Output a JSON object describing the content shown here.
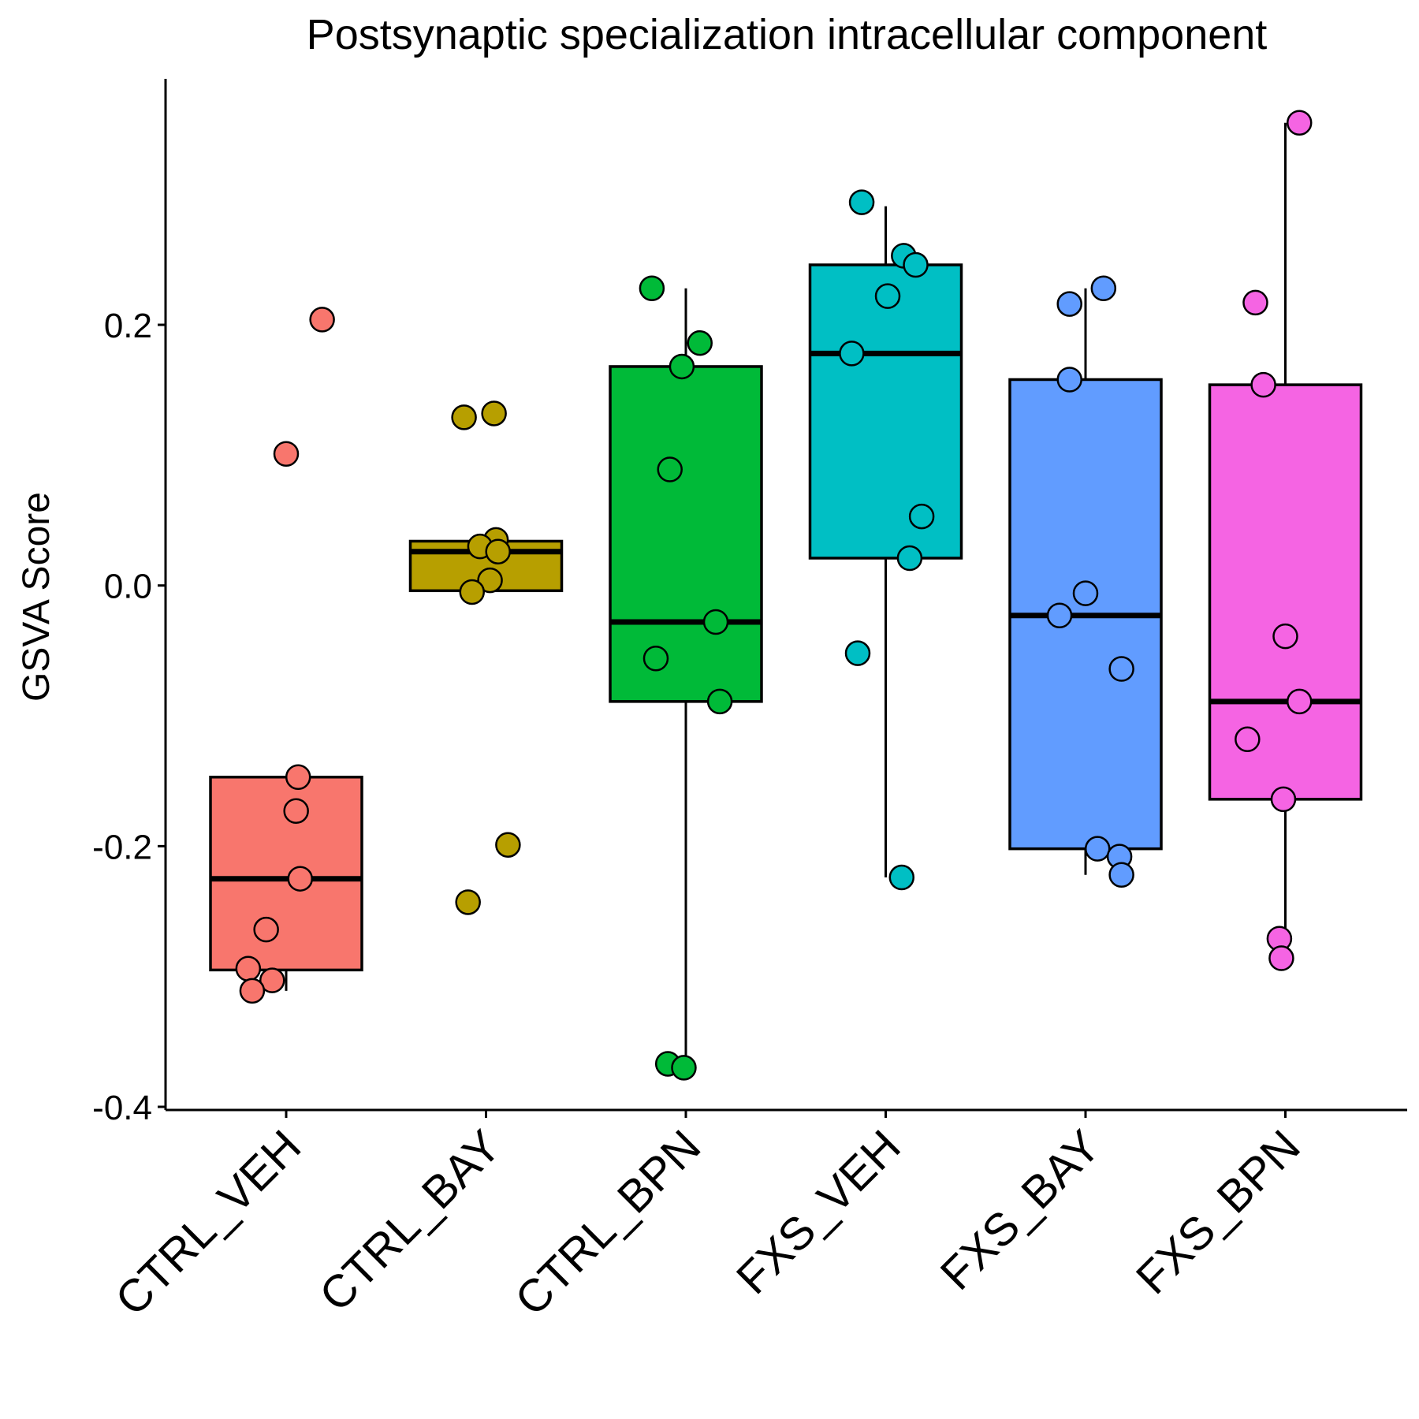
{
  "chart_data": {
    "type": "boxplot",
    "title": "Postsynaptic specialization intracellular component",
    "xlabel": "",
    "ylabel": "GSVA Score",
    "ylim": [
      -0.405,
      0.38
    ],
    "yticks": [
      -0.4,
      -0.2,
      0.0,
      0.2
    ],
    "ytick_labels": [
      "-0.4",
      "-0.2",
      "0.0",
      "0.2"
    ],
    "grid": false,
    "legend": "none",
    "categories": [
      "CTRL_VEH",
      "CTRL_BAY",
      "CTRL_BPN",
      "FXS_VEH",
      "FXS_BAY",
      "FXS_BPN"
    ],
    "series": [
      {
        "category": "CTRL_VEH",
        "color": "#F8766D",
        "box": {
          "whisker_low": -0.311,
          "q1": -0.295,
          "median": -0.225,
          "q3": -0.147,
          "whisker_high": -0.147
        },
        "points": [
          {
            "jitter": 0.18,
            "y": 0.204
          },
          {
            "jitter": 0.0,
            "y": 0.101
          },
          {
            "jitter": 0.06,
            "y": -0.147
          },
          {
            "jitter": 0.05,
            "y": -0.173
          },
          {
            "jitter": 0.07,
            "y": -0.225
          },
          {
            "jitter": -0.1,
            "y": -0.264
          },
          {
            "jitter": -0.19,
            "y": -0.294
          },
          {
            "jitter": -0.07,
            "y": -0.303
          },
          {
            "jitter": -0.17,
            "y": -0.311
          }
        ]
      },
      {
        "category": "CTRL_BAY",
        "color": "#B79F00",
        "box": {
          "whisker_low": -0.004,
          "q1": -0.004,
          "median": 0.026,
          "q3": 0.034,
          "whisker_high": 0.034
        },
        "points": [
          {
            "jitter": 0.04,
            "y": 0.132
          },
          {
            "jitter": -0.11,
            "y": 0.129
          },
          {
            "jitter": 0.05,
            "y": 0.035
          },
          {
            "jitter": -0.03,
            "y": 0.03
          },
          {
            "jitter": 0.06,
            "y": 0.026
          },
          {
            "jitter": 0.02,
            "y": 0.004
          },
          {
            "jitter": -0.07,
            "y": -0.005
          },
          {
            "jitter": 0.11,
            "y": -0.199
          },
          {
            "jitter": -0.09,
            "y": -0.243
          }
        ]
      },
      {
        "category": "CTRL_BPN",
        "color": "#00BA38",
        "box": {
          "whisker_low": -0.37,
          "q1": -0.089,
          "median": -0.028,
          "q3": 0.168,
          "whisker_high": 0.228
        },
        "points": [
          {
            "jitter": -0.17,
            "y": 0.228
          },
          {
            "jitter": 0.07,
            "y": 0.186
          },
          {
            "jitter": -0.02,
            "y": 0.168
          },
          {
            "jitter": -0.08,
            "y": 0.089
          },
          {
            "jitter": 0.15,
            "y": -0.028
          },
          {
            "jitter": -0.15,
            "y": -0.056
          },
          {
            "jitter": 0.17,
            "y": -0.089
          },
          {
            "jitter": -0.09,
            "y": -0.367
          },
          {
            "jitter": -0.01,
            "y": -0.37
          }
        ]
      },
      {
        "category": "FXS_VEH",
        "color": "#00BFC4",
        "box": {
          "whisker_low": -0.224,
          "q1": 0.021,
          "median": 0.178,
          "q3": 0.246,
          "whisker_high": 0.291
        },
        "points": [
          {
            "jitter": -0.12,
            "y": 0.294
          },
          {
            "jitter": 0.09,
            "y": 0.253
          },
          {
            "jitter": 0.15,
            "y": 0.246
          },
          {
            "jitter": 0.01,
            "y": 0.222
          },
          {
            "jitter": -0.17,
            "y": 0.178
          },
          {
            "jitter": 0.18,
            "y": 0.053
          },
          {
            "jitter": 0.12,
            "y": 0.021
          },
          {
            "jitter": -0.14,
            "y": -0.052
          },
          {
            "jitter": 0.08,
            "y": -0.224
          }
        ]
      },
      {
        "category": "FXS_BAY",
        "color": "#619CFF",
        "box": {
          "whisker_low": -0.222,
          "q1": -0.202,
          "median": -0.023,
          "q3": 0.158,
          "whisker_high": 0.228
        },
        "points": [
          {
            "jitter": 0.09,
            "y": 0.228
          },
          {
            "jitter": -0.08,
            "y": 0.216
          },
          {
            "jitter": -0.08,
            "y": 0.158
          },
          {
            "jitter": 0.0,
            "y": -0.006
          },
          {
            "jitter": -0.13,
            "y": -0.023
          },
          {
            "jitter": 0.18,
            "y": -0.064
          },
          {
            "jitter": 0.06,
            "y": -0.202
          },
          {
            "jitter": 0.17,
            "y": -0.208
          },
          {
            "jitter": 0.18,
            "y": -0.222
          }
        ]
      },
      {
        "category": "FXS_BPN",
        "color": "#F564E3",
        "box": {
          "whisker_low": -0.284,
          "q1": -0.164,
          "median": -0.089,
          "q3": 0.154,
          "whisker_high": 0.355
        },
        "points": [
          {
            "jitter": 0.07,
            "y": 0.355
          },
          {
            "jitter": -0.15,
            "y": 0.217
          },
          {
            "jitter": -0.11,
            "y": 0.154
          },
          {
            "jitter": 0.0,
            "y": -0.039
          },
          {
            "jitter": 0.07,
            "y": -0.089
          },
          {
            "jitter": -0.19,
            "y": -0.118
          },
          {
            "jitter": -0.01,
            "y": -0.164
          },
          {
            "jitter": -0.03,
            "y": -0.271
          },
          {
            "jitter": -0.02,
            "y": -0.286
          }
        ]
      }
    ]
  }
}
